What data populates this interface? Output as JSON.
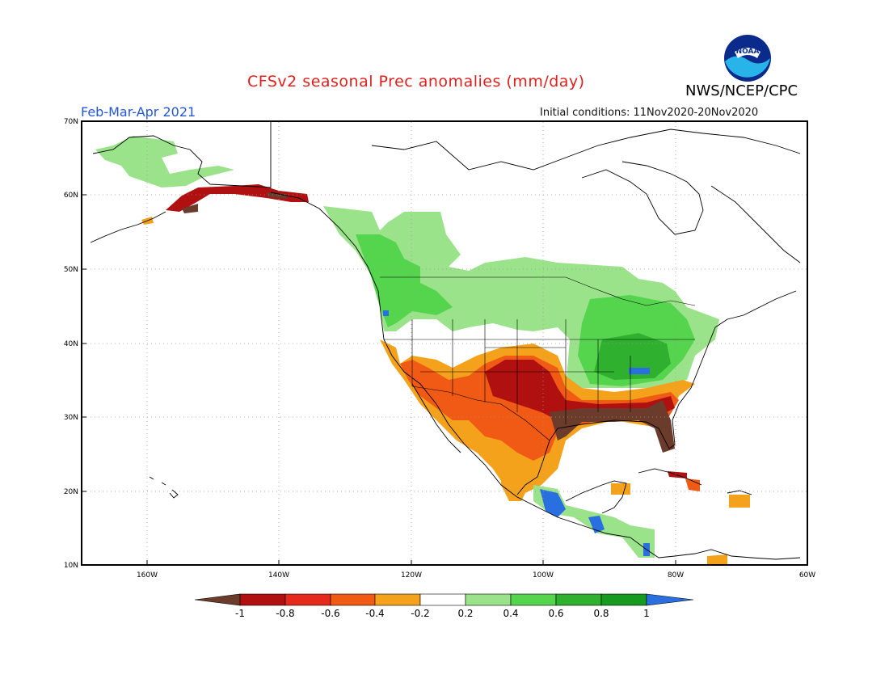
{
  "header": {
    "title": "CFSv2 seasonal Prec anomalies (mm/day)",
    "agency": "NWS/NCEP/CPC",
    "period": "Feb-Mar-Apr 2021",
    "initial_conditions": "Initial conditions: 11Nov2020-20Nov2020",
    "logo_text": "NOAA"
  },
  "axes": {
    "lat_labels": [
      "70N",
      "60N",
      "50N",
      "40N",
      "30N",
      "20N",
      "10N"
    ],
    "lon_labels": [
      "160W",
      "140W",
      "120W",
      "100W",
      "80W",
      "60W"
    ]
  },
  "colorbar": {
    "labels": [
      "-1",
      "-0.8",
      "-0.6",
      "-0.4",
      "-0.2",
      "0.2",
      "0.4",
      "0.6",
      "0.8",
      "1"
    ],
    "colors": {
      "below_-1": "#6b3b2b",
      "-1_-0.8": "#b01010",
      "-0.8_-0.6": "#e52a1c",
      "-0.6_-0.4": "#f05a14",
      "-0.4_-0.2": "#f4a21c",
      "-0.2_0.2": "#ffffff",
      "0.2_0.4": "#9be38a",
      "0.4_0.6": "#55d44e",
      "0.6_0.8": "#2fb02f",
      "0.8_1": "#169a20",
      "above_1": "#2a6fe0"
    }
  }
}
